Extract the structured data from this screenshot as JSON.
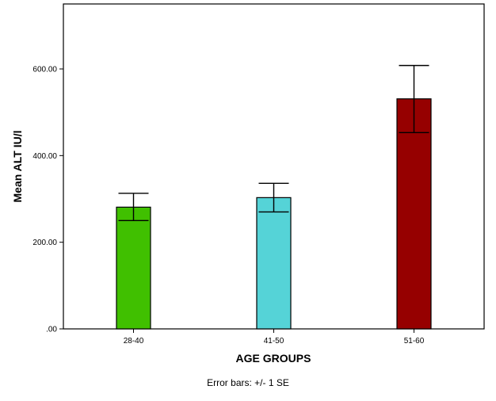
{
  "chart_data": {
    "type": "bar",
    "categories": [
      "28-40",
      "41-50",
      "51-60"
    ],
    "values": [
      281,
      303,
      531
    ],
    "error_bars": {
      "type": "+/- 1 SE",
      "lower": [
        250,
        270,
        453
      ],
      "upper": [
        313,
        336,
        608
      ]
    },
    "colors": [
      "#40c000",
      "#55d3d7",
      "#960000"
    ],
    "xlabel": "AGE GROUPS",
    "ylabel": "Mean ALT IU/l",
    "ylim": [
      0,
      750
    ],
    "yticks": [
      0,
      200,
      400,
      600
    ],
    "ytick_labels": [
      ".00",
      "200.00",
      "400.00",
      "600.00"
    ],
    "grid": false,
    "footnote": "Error bars: +/- 1 SE"
  }
}
